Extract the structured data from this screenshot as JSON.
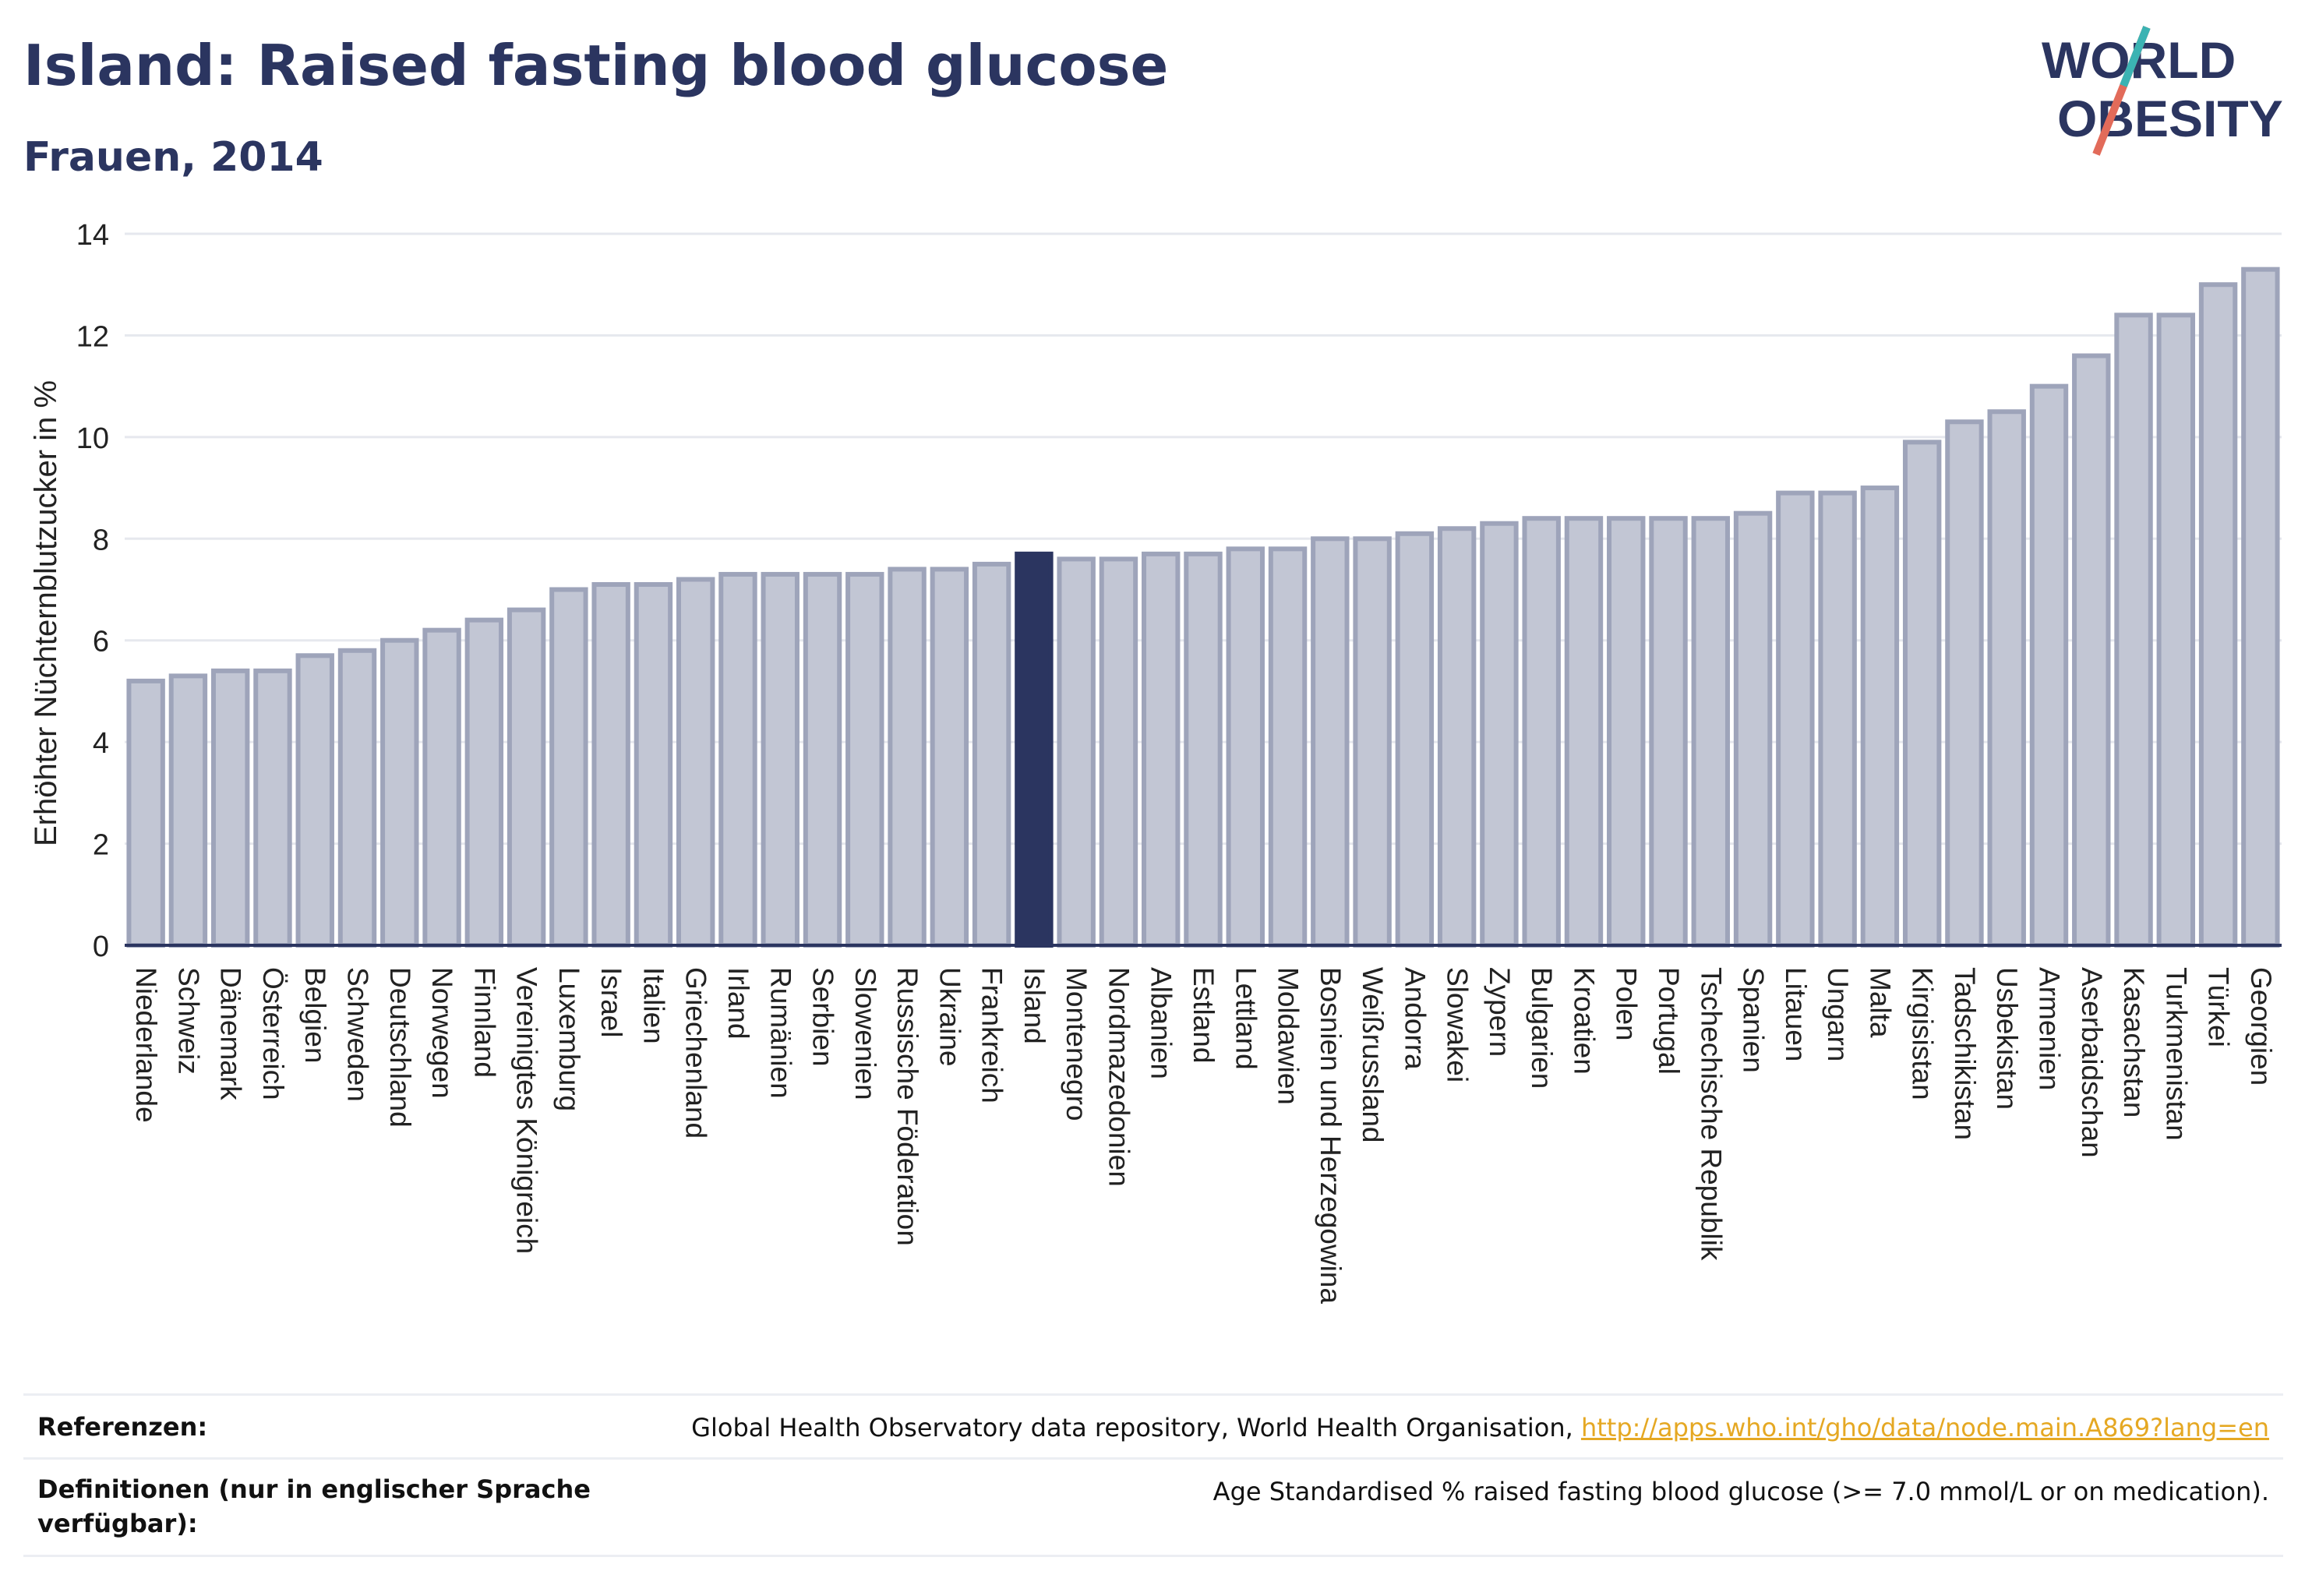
{
  "header": {
    "title": "Island: Raised fasting blood glucose",
    "subtitle": "Frauen, 2014"
  },
  "logo": {
    "line1": "WORLD",
    "line2": "OBESITY",
    "icon": "world-obesity-logo"
  },
  "colors": {
    "bar": "#c2c6d4",
    "bar_stroke": "#9ea4ba",
    "highlight": "#2b3560",
    "axis": "#2b3560",
    "grid": "#e6e8ee",
    "link": "#e5a823"
  },
  "chart_data": {
    "type": "bar",
    "ylabel": "Erhöhter Nüchternblutzucker in %",
    "xlabel": "",
    "ylim": [
      0,
      14
    ],
    "yticks": [
      0,
      2,
      4,
      6,
      8,
      10,
      12,
      14
    ],
    "grid": true,
    "highlight": "Island",
    "categories": [
      "Niederlande",
      "Schweiz",
      "Dänemark",
      "Österreich",
      "Belgien",
      "Schweden",
      "Deutschland",
      "Norwegen",
      "Finnland",
      "Vereinigtes Königreich",
      "Luxemburg",
      "Israel",
      "Italien",
      "Griechenland",
      "Irland",
      "Rumänien",
      "Serbien",
      "Slowenien",
      "Russische Föderation",
      "Ukraine",
      "Frankreich",
      "Island",
      "Montenegro",
      "Nordmazedonien",
      "Albanien",
      "Estland",
      "Lettland",
      "Moldawien",
      "Bosnien und Herzegowina",
      "Weißrussland",
      "Andorra",
      "Slowakei",
      "Zypern",
      "Bulgarien",
      "Kroatien",
      "Polen",
      "Portugal",
      "Tschechische Republik",
      "Spanien",
      "Litauen",
      "Ungarn",
      "Malta",
      "Kirgisistan",
      "Tadschikistan",
      "Usbekistan",
      "Armenien",
      "Aserbaidschan",
      "Kasachstan",
      "Turkmenistan",
      "Türkei",
      "Georgien"
    ],
    "values": [
      5.2,
      5.3,
      5.4,
      5.4,
      5.7,
      5.8,
      6.0,
      6.2,
      6.4,
      6.6,
      7.0,
      7.1,
      7.1,
      7.2,
      7.3,
      7.3,
      7.3,
      7.3,
      7.4,
      7.4,
      7.5,
      7.7,
      7.6,
      7.6,
      7.7,
      7.7,
      7.8,
      7.8,
      8.0,
      8.0,
      8.1,
      8.2,
      8.3,
      8.4,
      8.4,
      8.4,
      8.4,
      8.4,
      8.5,
      8.9,
      8.9,
      9.0,
      9.9,
      10.3,
      10.5,
      11.0,
      11.6,
      12.4,
      12.4,
      13.0,
      13.3
    ]
  },
  "footer": {
    "ref_label": "Referenzen:",
    "ref_text": "Global Health Observatory data repository, World Health Organisation, ",
    "ref_link": "http://apps.who.int/gho/data/node.main.A869?lang=en",
    "def_label": "Definitionen (nur in englischer Sprache verfügbar):",
    "def_text": "Age Standardised % raised fasting blood glucose (>= 7.0 mmol/L or on medication)."
  }
}
